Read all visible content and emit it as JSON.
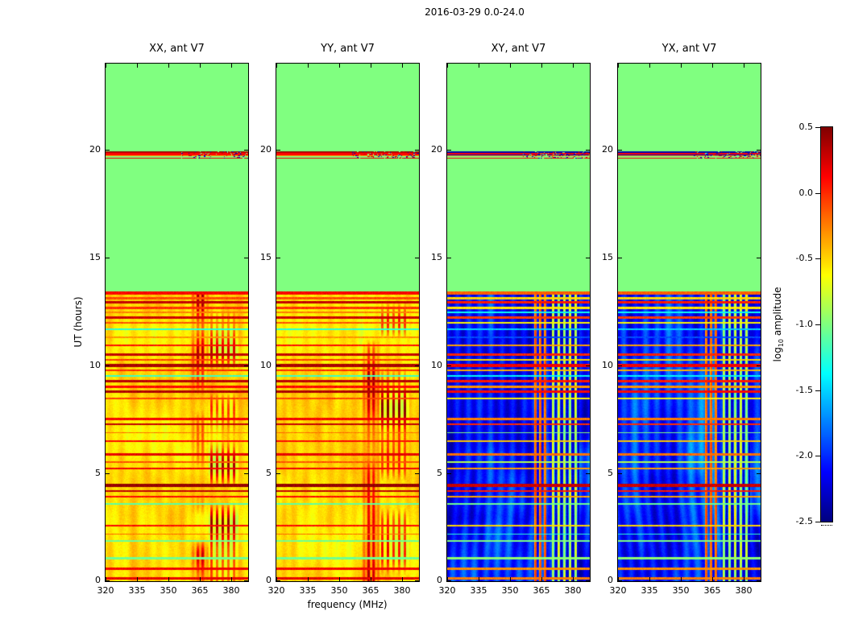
{
  "figure": {
    "title": "2016-03-29 0.0-24.0"
  },
  "labels": {
    "xlabel": "frequency (MHz)",
    "ylabel": "UT (hours)",
    "colorbar_log": "log",
    "colorbar_sub": "10",
    "colorbar_rest": " amplitude"
  },
  "chart_data": {
    "type": "heatmap",
    "title": "2016-03-29 0.0-24.0",
    "xlabel": "frequency (MHz)",
    "ylabel": "UT (hours)",
    "colorbar_label": "log10 amplitude",
    "colormap": "jet",
    "x_range_mhz": [
      320,
      388
    ],
    "x_ticks": [
      320,
      335,
      350,
      365,
      380
    ],
    "y_range_hours": [
      0,
      24
    ],
    "y_ticks": [
      0,
      5,
      10,
      15,
      20
    ],
    "z_range": [
      -2.5,
      0.5
    ],
    "colorbar_ticks": [
      "0.5",
      "0.0",
      "-0.5",
      "-1.0",
      "-1.5",
      "-2.0",
      "-2.5"
    ],
    "panels": [
      {
        "title": "XX, ant V7",
        "type": "parallel",
        "seed": 11
      },
      {
        "title": "YY, ant V7",
        "type": "parallel",
        "seed": 23
      },
      {
        "title": "XY, ant V7",
        "type": "cross",
        "seed": 37
      },
      {
        "title": "YX, ant V7",
        "type": "cross",
        "seed": 51
      }
    ],
    "flagged_value": -1.0,
    "flagged_region_hours": [
      13.42,
      24.0
    ],
    "event_band_hours": [
      19.6,
      19.92
    ],
    "active_region_hours": [
      0,
      13.42
    ],
    "rfi_bands_mhz": [
      [
        361.5,
        368.5
      ],
      [
        369.5,
        383.5
      ]
    ],
    "base_level": {
      "parallel": -0.7,
      "cross": -2.35
    },
    "band_profile": {
      "parallel": [
        [
          0.0,
          0.15,
          0.2
        ],
        [
          0.15,
          0.3,
          -1.0
        ],
        [
          0.3,
          0.5,
          -0.35
        ],
        [
          0.5,
          0.75,
          0.1
        ],
        [
          0.75,
          0.9,
          0.3
        ],
        [
          0.9,
          1.01,
          0.45
        ]
      ],
      "cross": [
        [
          0.0,
          0.15,
          0.15
        ],
        [
          0.15,
          0.3,
          -1.0
        ],
        [
          0.3,
          0.45,
          -0.3
        ],
        [
          0.45,
          0.6,
          -2.3
        ],
        [
          0.6,
          0.78,
          0.1
        ],
        [
          0.78,
          1.01,
          -2.35
        ]
      ]
    },
    "stripes": [
      {
        "t": 13.36,
        "w": 0.06,
        "par": 0.12,
        "cross": -0.15
      },
      {
        "t": 13.12,
        "w": 0.05,
        "par": -0.1,
        "cross": -0.5
      },
      {
        "t": 12.93,
        "w": 0.06,
        "par": 0.3,
        "cross": 0.05
      },
      {
        "t": 12.68,
        "w": 0.05,
        "par": -0.02,
        "cross": -0.55
      },
      {
        "t": 12.48,
        "w": 0.04,
        "par": -0.25,
        "cross": -1.35
      },
      {
        "t": 12.22,
        "w": 0.05,
        "par": 0.27,
        "cross": -0.05
      },
      {
        "t": 11.98,
        "w": 0.04,
        "par": -0.12,
        "cross": -0.6
      },
      {
        "t": 11.68,
        "w": 0.04,
        "par": -1.25,
        "cross": -1.5
      },
      {
        "t": 11.32,
        "w": 0.03,
        "par": -0.3,
        "cross": -1.9
      },
      {
        "t": 10.93,
        "w": 0.04,
        "par": 0.08,
        "cross": -0.35
      },
      {
        "t": 10.52,
        "w": 0.06,
        "par": 0.3,
        "cross": 0.02
      },
      {
        "t": 10.27,
        "w": 0.05,
        "par": -0.05,
        "cross": -0.5
      },
      {
        "t": 10.0,
        "w": 0.08,
        "par": 0.38,
        "cross": 0.15
      },
      {
        "t": 9.78,
        "w": 0.05,
        "par": 0.0,
        "cross": -0.4
      },
      {
        "t": 9.52,
        "w": 0.03,
        "par": -1.2,
        "cross": -1.4
      },
      {
        "t": 9.28,
        "w": 0.06,
        "par": 0.32,
        "cross": 0.05
      },
      {
        "t": 9.02,
        "w": 0.05,
        "par": 0.1,
        "cross": -0.3
      },
      {
        "t": 8.78,
        "w": 0.06,
        "par": 0.36,
        "cross": 0.12
      },
      {
        "t": 8.48,
        "w": 0.04,
        "par": -0.08,
        "cross": -0.6
      },
      {
        "t": 7.52,
        "w": 0.05,
        "par": 0.14,
        "cross": -0.25
      },
      {
        "t": 7.28,
        "w": 0.04,
        "par": 0.3,
        "cross": 0.0
      },
      {
        "t": 6.88,
        "w": 0.03,
        "par": -0.2,
        "cross": -1.0
      },
      {
        "t": 6.48,
        "w": 0.04,
        "par": 0.1,
        "cross": -0.45
      },
      {
        "t": 5.88,
        "w": 0.04,
        "par": 0.2,
        "cross": -0.2
      },
      {
        "t": 5.52,
        "w": 0.03,
        "par": -0.12,
        "cross": -0.85
      },
      {
        "t": 5.22,
        "w": 0.04,
        "par": 0.15,
        "cross": -0.35
      },
      {
        "t": 4.44,
        "w": 0.09,
        "par": 0.44,
        "cross": 0.28
      },
      {
        "t": 4.18,
        "w": 0.05,
        "par": 0.3,
        "cross": 0.05
      },
      {
        "t": 3.92,
        "w": 0.04,
        "par": 0.1,
        "cross": -0.35
      },
      {
        "t": 3.58,
        "w": 0.04,
        "par": -1.1,
        "cross": -1.05
      },
      {
        "t": 2.58,
        "w": 0.04,
        "par": 0.1,
        "cross": -0.5
      },
      {
        "t": 2.18,
        "w": 0.03,
        "par": -0.18,
        "cross": -1.25
      },
      {
        "t": 1.88,
        "w": 0.04,
        "par": -1.05,
        "cross": -1.0
      },
      {
        "t": 1.07,
        "w": 0.05,
        "par": -1.05,
        "cross": -0.95
      },
      {
        "t": 0.58,
        "w": 0.04,
        "par": 0.15,
        "cross": -0.3
      },
      {
        "t": 0.14,
        "w": 0.05,
        "par": 0.2,
        "cross": -0.25
      }
    ]
  }
}
